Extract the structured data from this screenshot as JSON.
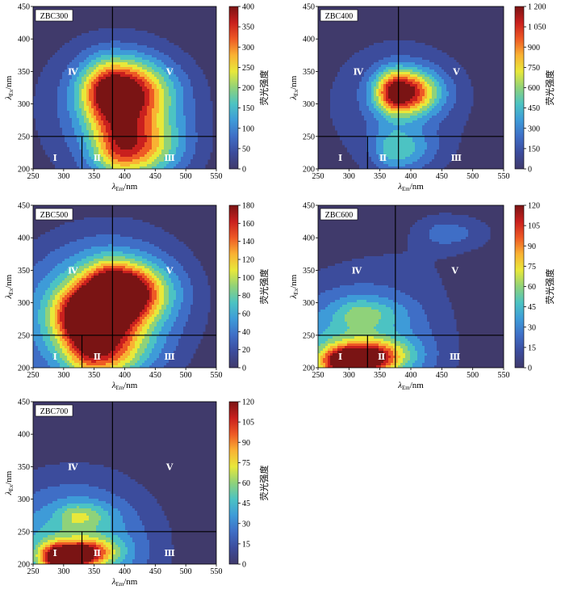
{
  "figure": {
    "xlabel_main": "λ",
    "xlabel_sub": "Em",
    "xlabel_unit": "/nm",
    "ylabel_main": "λ",
    "ylabel_sub": "Ex",
    "ylabel_unit": "/nm",
    "colorbar_label": "荧光强度",
    "colors": {
      "background": "#403a6b",
      "divider": "#000000",
      "scale": [
        "#403a6b",
        "#3c4c9c",
        "#3f6ec6",
        "#3e9bd8",
        "#4cc3c3",
        "#8fd27a",
        "#e8e83a",
        "#f9b233",
        "#ee5a25",
        "#c9201e",
        "#7a1414"
      ]
    }
  },
  "chart_data": [
    {
      "type": "heatmap",
      "name": "ZBC300",
      "label": "ZBC300",
      "xlim": [
        250,
        550
      ],
      "ylim": [
        200,
        450
      ],
      "xticks": [
        "250",
        "300",
        "350",
        "400",
        "450",
        "500",
        "550"
      ],
      "yticks": [
        "200",
        "250",
        "300",
        "350",
        "400",
        "450"
      ],
      "zlim": [
        0,
        400
      ],
      "cbar_ticks": [
        "0",
        "50",
        "100",
        "150",
        "200",
        "250",
        "300",
        "350",
        "400"
      ],
      "dividers": {
        "ex": 250,
        "em_top": 380,
        "em_bottom": 330
      },
      "regions": [
        "Ⅰ",
        "Ⅱ",
        "Ⅲ",
        "Ⅳ",
        "Ⅴ"
      ],
      "peaks": [
        {
          "em": 383,
          "ex": 318,
          "intensity": 400
        },
        {
          "em": 400,
          "ex": 235,
          "intensity": 290
        }
      ],
      "peak_shape": {
        "sx": 36,
        "sy": 34,
        "tail": 0.22
      }
    },
    {
      "type": "heatmap",
      "name": "ZBC400",
      "label": "ZBC400",
      "xlim": [
        250,
        550
      ],
      "ylim": [
        200,
        450
      ],
      "xticks": [
        "250",
        "300",
        "350",
        "400",
        "450",
        "500",
        "550"
      ],
      "yticks": [
        "200",
        "250",
        "300",
        "350",
        "400",
        "450"
      ],
      "zlim": [
        0,
        1200
      ],
      "cbar_ticks": [
        "0",
        "150",
        "300",
        "450",
        "600",
        "750",
        "900",
        "1 050",
        "1 200"
      ],
      "dividers": {
        "ex": 250,
        "em_top": 380,
        "em_bottom": 330
      },
      "regions": [
        "Ⅰ",
        "Ⅱ",
        "Ⅲ",
        "Ⅳ",
        "Ⅴ"
      ],
      "peaks": [
        {
          "em": 380,
          "ex": 318,
          "intensity": 1200
        },
        {
          "em": 375,
          "ex": 230,
          "intensity": 420
        }
      ],
      "peak_shape": {
        "sx": 26,
        "sy": 24,
        "tail": 0.18
      }
    },
    {
      "type": "heatmap",
      "name": "ZBC500",
      "label": "ZBC500",
      "xlim": [
        250,
        550
      ],
      "ylim": [
        200,
        450
      ],
      "xticks": [
        "250",
        "300",
        "350",
        "400",
        "450",
        "500",
        "550"
      ],
      "yticks": [
        "200",
        "250",
        "300",
        "350",
        "400",
        "450"
      ],
      "zlim": [
        0,
        180
      ],
      "cbar_ticks": [
        "0",
        "20",
        "40",
        "60",
        "80",
        "100",
        "120",
        "140",
        "160",
        "180"
      ],
      "dividers": {
        "ex": 250,
        "em_top": 380,
        "em_bottom": 330
      },
      "regions": [
        "Ⅰ",
        "Ⅱ",
        "Ⅲ",
        "Ⅳ",
        "Ⅴ"
      ],
      "peaks": [
        {
          "em": 383,
          "ex": 318,
          "intensity": 180
        },
        {
          "em": 335,
          "ex": 280,
          "intensity": 150
        },
        {
          "em": 350,
          "ex": 225,
          "intensity": 100
        }
      ],
      "peak_shape": {
        "sx": 32,
        "sy": 28,
        "tail": 0.3
      }
    },
    {
      "type": "heatmap",
      "name": "ZBC600",
      "label": "ZBC600",
      "xlim": [
        250,
        550
      ],
      "ylim": [
        200,
        450
      ],
      "xticks": [
        "250",
        "300",
        "350",
        "400",
        "450",
        "500",
        "550"
      ],
      "yticks": [
        "200",
        "250",
        "300",
        "350",
        "400",
        "450"
      ],
      "zlim": [
        0,
        120
      ],
      "cbar_ticks": [
        "0",
        "15",
        "30",
        "45",
        "60",
        "75",
        "90",
        "105",
        "120"
      ],
      "dividers": {
        "ex": 250,
        "em_top": 375,
        "em_bottom": 330
      },
      "regions": [
        "Ⅰ",
        "Ⅱ",
        "Ⅲ",
        "Ⅳ",
        "Ⅴ"
      ],
      "peaks": [
        {
          "em": 295,
          "ex": 210,
          "intensity": 100
        },
        {
          "em": 340,
          "ex": 222,
          "intensity": 40
        },
        {
          "em": 455,
          "ex": 407,
          "intensity": 22
        },
        {
          "em": 320,
          "ex": 285,
          "intensity": 25
        }
      ],
      "peak_shape": {
        "sx": 28,
        "sy": 16,
        "tail": 0.4
      }
    },
    {
      "type": "heatmap",
      "name": "ZBC700",
      "label": "ZBC700",
      "xlim": [
        250,
        550
      ],
      "ylim": [
        200,
        450
      ],
      "xticks": [
        "250",
        "300",
        "350",
        "400",
        "450",
        "500",
        "550"
      ],
      "yticks": [
        "200",
        "250",
        "300",
        "350",
        "400",
        "450"
      ],
      "zlim": [
        0,
        120
      ],
      "cbar_ticks": [
        "0",
        "15",
        "30",
        "45",
        "60",
        "75",
        "90",
        "105",
        "120"
      ],
      "dividers": {
        "ex": 250,
        "em_top": 380,
        "em_bottom": 330
      },
      "regions": [
        "Ⅰ",
        "Ⅱ",
        "Ⅲ",
        "Ⅳ",
        "Ⅴ"
      ],
      "peaks": [
        {
          "em": 295,
          "ex": 212,
          "intensity": 110
        },
        {
          "em": 345,
          "ex": 220,
          "intensity": 45
        },
        {
          "em": 325,
          "ex": 275,
          "intensity": 30
        }
      ],
      "peak_shape": {
        "sx": 22,
        "sy": 14,
        "tail": 0.35
      }
    }
  ]
}
